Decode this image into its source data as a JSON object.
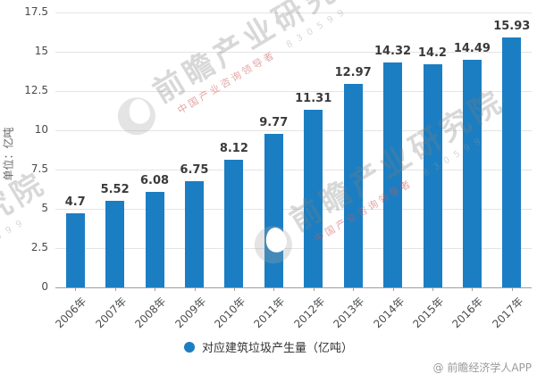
{
  "chart_data": {
    "type": "bar",
    "categories": [
      "2006年",
      "2007年",
      "2008年",
      "2009年",
      "2010年",
      "2011年",
      "2012年",
      "2013年",
      "2014年",
      "2015年",
      "2016年",
      "2017年"
    ],
    "values": [
      4.7,
      5.52,
      6.08,
      6.75,
      8.12,
      9.77,
      11.31,
      12.97,
      14.32,
      14.2,
      14.49,
      15.93
    ],
    "value_labels": [
      "4.7",
      "5.52",
      "6.08",
      "6.75",
      "8.12",
      "9.77",
      "11.31",
      "12.97",
      "14.32",
      "14.2",
      "14.49",
      "15.93"
    ],
    "title": "",
    "xlabel": "",
    "ylabel": "单位：亿吨",
    "ylim": [
      0,
      17.5
    ],
    "yticks": [
      0,
      2.5,
      5,
      7.5,
      10,
      12.5,
      15,
      17.5
    ],
    "ytick_labels": [
      "0",
      "2.5",
      "5",
      "7.5",
      "10",
      "12.5",
      "15",
      "17.5"
    ],
    "grid": true,
    "legend": "对应建筑垃圾产生量（亿吨）",
    "legend_position": "bottom",
    "bar_color": "#1b7ec2"
  },
  "watermark": {
    "brand_text": "前瞻产业研究院",
    "slogan": "中国产业咨询领导者",
    "serial": "830599"
  },
  "footer": {
    "credit": "@ 前瞻经济学人APP"
  }
}
